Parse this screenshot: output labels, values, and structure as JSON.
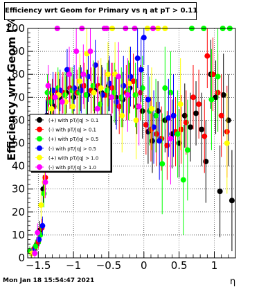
{
  "title": "Efficiency wrt Geom for Primary vs  η at pT > 0.11",
  "timestamp": "Mon Jan 18 15:54:47 2021",
  "chart_data": {
    "type": "scatter",
    "title": "Efficiency wrt Geom for Primary vs  η at pT > 0.11",
    "xlabel": "η",
    "ylabel": "Efficiency wrt Geom (%)",
    "xlim": [
      -1.65,
      1.3
    ],
    "ylim": [
      0,
      100
    ],
    "xticks": [
      -1.5,
      -1,
      -0.5,
      0,
      0.5,
      1
    ],
    "xtick_labels": [
      "−1.5",
      "−1",
      "−0.5",
      "0",
      "0.5",
      "1"
    ],
    "yticks": [
      0,
      10,
      20,
      30,
      40,
      50,
      60,
      70,
      80,
      90,
      100
    ],
    "grid": true,
    "legend_position": "left-middle",
    "series": [
      {
        "name": "(+) with pT/|q| > 0.1",
        "color": "#000000",
        "points": [
          {
            "x": -1.58,
            "y": 3,
            "e": 2
          },
          {
            "x": -1.52,
            "y": 6,
            "e": 3
          },
          {
            "x": -1.48,
            "y": 12,
            "e": 4
          },
          {
            "x": -1.43,
            "y": 30,
            "e": 6
          },
          {
            "x": -1.38,
            "y": 62,
            "e": 8
          },
          {
            "x": -1.33,
            "y": 68,
            "e": 7
          },
          {
            "x": -1.28,
            "y": 66,
            "e": 8
          },
          {
            "x": -1.2,
            "y": 70,
            "e": 8
          },
          {
            "x": -1.1,
            "y": 72,
            "e": 9
          },
          {
            "x": -1.0,
            "y": 70,
            "e": 10
          },
          {
            "x": -0.9,
            "y": 74,
            "e": 10
          },
          {
            "x": -0.8,
            "y": 71,
            "e": 11
          },
          {
            "x": -0.7,
            "y": 73,
            "e": 10
          },
          {
            "x": -0.6,
            "y": 72,
            "e": 12
          },
          {
            "x": -0.5,
            "y": 75,
            "e": 11
          },
          {
            "x": -0.4,
            "y": 70,
            "e": 12
          },
          {
            "x": -0.3,
            "y": 69,
            "e": 12
          },
          {
            "x": -0.2,
            "y": 74,
            "e": 11
          },
          {
            "x": -0.1,
            "y": 66,
            "e": 12
          },
          {
            "x": -0.02,
            "y": 64,
            "e": 12
          },
          {
            "x": 0.06,
            "y": 55,
            "e": 14
          },
          {
            "x": 0.12,
            "y": 51,
            "e": 14
          },
          {
            "x": 0.2,
            "y": 64,
            "e": 13
          },
          {
            "x": 0.3,
            "y": 60,
            "e": 14
          },
          {
            "x": 0.4,
            "y": 54,
            "e": 15
          },
          {
            "x": 0.5,
            "y": 50,
            "e": 15
          },
          {
            "x": 0.58,
            "y": 62,
            "e": 14
          },
          {
            "x": 0.66,
            "y": 57,
            "e": 15
          },
          {
            "x": 0.74,
            "y": 63,
            "e": 14
          },
          {
            "x": 0.82,
            "y": 56,
            "e": 16
          },
          {
            "x": 0.88,
            "y": 42,
            "e": 18
          },
          {
            "x": 0.95,
            "y": 80,
            "e": 15
          },
          {
            "x": 1.02,
            "y": 70,
            "e": 16
          },
          {
            "x": 1.08,
            "y": 29,
            "e": 20
          },
          {
            "x": 1.13,
            "y": 71,
            "e": 18
          },
          {
            "x": 1.2,
            "y": 60,
            "e": 20
          },
          {
            "x": 1.25,
            "y": 25,
            "e": 22
          }
        ]
      },
      {
        "name": "(-) with pT/|q| > 0.1",
        "color": "#ff0000",
        "points": [
          {
            "x": -1.56,
            "y": 4,
            "e": 2
          },
          {
            "x": -1.5,
            "y": 7,
            "e": 3
          },
          {
            "x": -1.45,
            "y": 13,
            "e": 4
          },
          {
            "x": -1.4,
            "y": 35,
            "e": 6
          },
          {
            "x": -1.35,
            "y": 69,
            "e": 8
          },
          {
            "x": -1.3,
            "y": 70,
            "e": 8
          },
          {
            "x": -1.25,
            "y": 73,
            "e": 8
          },
          {
            "x": -1.15,
            "y": 72,
            "e": 9
          },
          {
            "x": -1.05,
            "y": 74,
            "e": 9
          },
          {
            "x": -0.95,
            "y": 72,
            "e": 10
          },
          {
            "x": -0.85,
            "y": 75,
            "e": 10
          },
          {
            "x": -0.75,
            "y": 73,
            "e": 10
          },
          {
            "x": -0.65,
            "y": 75,
            "e": 11
          },
          {
            "x": -0.55,
            "y": 71,
            "e": 11
          },
          {
            "x": -0.45,
            "y": 74,
            "e": 11
          },
          {
            "x": -0.35,
            "y": 66,
            "e": 12
          },
          {
            "x": -0.25,
            "y": 72,
            "e": 12
          },
          {
            "x": -0.15,
            "y": 77,
            "e": 12
          },
          {
            "x": -0.05,
            "y": 72,
            "e": 12
          },
          {
            "x": 0.03,
            "y": 58,
            "e": 13
          },
          {
            "x": 0.1,
            "y": 56,
            "e": 14
          },
          {
            "x": 0.18,
            "y": 54,
            "e": 14
          },
          {
            "x": 0.25,
            "y": 52,
            "e": 14
          },
          {
            "x": 0.33,
            "y": 49,
            "e": 15
          },
          {
            "x": 0.45,
            "y": 55,
            "e": 15
          },
          {
            "x": 0.53,
            "y": 56,
            "e": 15
          },
          {
            "x": 0.6,
            "y": 59,
            "e": 14
          },
          {
            "x": 0.7,
            "y": 70,
            "e": 14
          },
          {
            "x": 0.78,
            "y": 67,
            "e": 15
          },
          {
            "x": 0.86,
            "y": 53,
            "e": 16
          },
          {
            "x": 0.9,
            "y": 88,
            "e": 14
          },
          {
            "x": 0.98,
            "y": 80,
            "e": 16
          },
          {
            "x": 1.05,
            "y": 72,
            "e": 17
          },
          {
            "x": 1.1,
            "y": 62,
            "e": 18
          },
          {
            "x": 1.18,
            "y": 55,
            "e": 20
          }
        ]
      },
      {
        "name": "(+) with pT/|q| > 0.5",
        "color": "#00ff00",
        "points": [
          {
            "x": -1.62,
            "y": 3,
            "e": 2
          },
          {
            "x": -1.54,
            "y": 5,
            "e": 3
          },
          {
            "x": -1.47,
            "y": 10,
            "e": 4
          },
          {
            "x": -1.42,
            "y": 28,
            "e": 6
          },
          {
            "x": -1.37,
            "y": 72,
            "e": 8
          },
          {
            "x": -1.32,
            "y": 68,
            "e": 8
          },
          {
            "x": -1.22,
            "y": 74,
            "e": 9
          },
          {
            "x": -1.12,
            "y": 71,
            "e": 10
          },
          {
            "x": -1.02,
            "y": 73,
            "e": 10
          },
          {
            "x": -0.92,
            "y": 72,
            "e": 11
          },
          {
            "x": -0.82,
            "y": 71,
            "e": 11
          },
          {
            "x": -0.72,
            "y": 75,
            "e": 11
          },
          {
            "x": -0.62,
            "y": 67,
            "e": 12
          },
          {
            "x": -0.52,
            "y": 73,
            "e": 12
          },
          {
            "x": -0.42,
            "y": 72,
            "e": 13
          },
          {
            "x": -0.32,
            "y": 70,
            "e": 13
          },
          {
            "x": -0.22,
            "y": 73,
            "e": 13
          },
          {
            "x": -0.12,
            "y": 71,
            "e": 14
          },
          {
            "x": -0.02,
            "y": 74,
            "e": 14
          },
          {
            "x": 0.08,
            "y": 64,
            "e": 15
          },
          {
            "x": 0.17,
            "y": 62,
            "e": 16
          },
          {
            "x": 0.26,
            "y": 41,
            "e": 22
          },
          {
            "x": 0.3,
            "y": 74,
            "e": 18
          },
          {
            "x": 0.38,
            "y": 72,
            "e": 18
          },
          {
            "x": 0.48,
            "y": 54,
            "e": 19
          },
          {
            "x": 0.56,
            "y": 34,
            "e": 24
          },
          {
            "x": 0.62,
            "y": 47,
            "e": 22
          },
          {
            "x": 0.68,
            "y": 100,
            "e": 0
          },
          {
            "x": 0.85,
            "y": 100,
            "e": 0
          },
          {
            "x": 0.96,
            "y": 69,
            "e": 22
          },
          {
            "x": 1.05,
            "y": 79,
            "e": 24
          },
          {
            "x": 1.12,
            "y": 100,
            "e": 0
          },
          {
            "x": 1.22,
            "y": 100,
            "e": 0
          }
        ]
      },
      {
        "name": "(-) with pT/|q| > 0.5",
        "color": "#0000ff",
        "points": [
          {
            "x": -1.57,
            "y": 3,
            "e": 2
          },
          {
            "x": -1.49,
            "y": 8,
            "e": 3
          },
          {
            "x": -1.44,
            "y": 14,
            "e": 4
          },
          {
            "x": -1.39,
            "y": 61,
            "e": 8
          },
          {
            "x": -1.29,
            "y": 73,
            "e": 8
          },
          {
            "x": -1.19,
            "y": 73,
            "e": 9
          },
          {
            "x": -1.09,
            "y": 82,
            "e": 9
          },
          {
            "x": -0.99,
            "y": 74,
            "e": 10
          },
          {
            "x": -0.89,
            "y": 73,
            "e": 10
          },
          {
            "x": -0.79,
            "y": 79,
            "e": 11
          },
          {
            "x": -0.69,
            "y": 84,
            "e": 11
          },
          {
            "x": -0.59,
            "y": 71,
            "e": 12
          },
          {
            "x": -0.49,
            "y": 76,
            "e": 12
          },
          {
            "x": -0.39,
            "y": 68,
            "e": 12
          },
          {
            "x": -0.29,
            "y": 75,
            "e": 13
          },
          {
            "x": -0.19,
            "y": 79,
            "e": 13
          },
          {
            "x": -0.09,
            "y": 87,
            "e": 13
          },
          {
            "x": -0.04,
            "y": 82,
            "e": 14
          },
          {
            "x": 0.0,
            "y": 96,
            "e": 12
          },
          {
            "x": 0.06,
            "y": 69,
            "e": 15
          },
          {
            "x": 0.14,
            "y": 57,
            "e": 16
          },
          {
            "x": 0.22,
            "y": 51,
            "e": 17
          },
          {
            "x": 0.35,
            "y": 61,
            "e": 17
          },
          {
            "x": 0.42,
            "y": 62,
            "e": 18
          }
        ]
      },
      {
        "name": "(+) with pT/|q| > 1.0",
        "color": "#ffff00",
        "points": [
          {
            "x": -1.59,
            "y": 2,
            "e": 2
          },
          {
            "x": -1.46,
            "y": 23,
            "e": 6
          },
          {
            "x": -1.41,
            "y": 33,
            "e": 7
          },
          {
            "x": -1.31,
            "y": 65,
            "e": 9
          },
          {
            "x": -1.21,
            "y": 71,
            "e": 10
          },
          {
            "x": -1.11,
            "y": 68,
            "e": 11
          },
          {
            "x": -1.01,
            "y": 66,
            "e": 12
          },
          {
            "x": -0.91,
            "y": 77,
            "e": 12
          },
          {
            "x": -0.81,
            "y": 89,
            "e": 12
          },
          {
            "x": -0.71,
            "y": 72,
            "e": 13
          },
          {
            "x": -0.61,
            "y": 74,
            "e": 13
          },
          {
            "x": -0.51,
            "y": 80,
            "e": 14
          },
          {
            "x": -0.45,
            "y": 100,
            "e": 0
          },
          {
            "x": -0.41,
            "y": 80,
            "e": 14
          },
          {
            "x": -0.31,
            "y": 62,
            "e": 16
          },
          {
            "x": -0.21,
            "y": 76,
            "e": 16
          },
          {
            "x": -0.11,
            "y": 60,
            "e": 17
          },
          {
            "x": 0.05,
            "y": 100,
            "e": 0
          },
          {
            "x": 0.11,
            "y": 65,
            "e": 18
          },
          {
            "x": 0.2,
            "y": 100,
            "e": 0
          },
          {
            "x": 0.3,
            "y": 100,
            "e": 0
          },
          {
            "x": 0.52,
            "y": 67,
            "e": 20
          },
          {
            "x": 1.18,
            "y": 50,
            "e": 22
          }
        ]
      },
      {
        "name": "(-) with pT/|q| > 1.0",
        "color": "#ff00ff",
        "points": [
          {
            "x": -1.55,
            "y": 2,
            "e": 2
          },
          {
            "x": -1.51,
            "y": 11,
            "e": 4
          },
          {
            "x": -1.4,
            "y": 33,
            "e": 7
          },
          {
            "x": -1.36,
            "y": 75,
            "e": 9
          },
          {
            "x": -1.26,
            "y": 70,
            "e": 10
          },
          {
            "x": -1.16,
            "y": 68,
            "e": 11
          },
          {
            "x": -1.06,
            "y": 80,
            "e": 12
          },
          {
            "x": -0.96,
            "y": 90,
            "e": 12
          },
          {
            "x": -0.86,
            "y": 80,
            "e": 13
          },
          {
            "x": -0.76,
            "y": 90,
            "e": 13
          },
          {
            "x": -0.66,
            "y": 65,
            "e": 14
          },
          {
            "x": -0.56,
            "y": 100,
            "e": 0
          },
          {
            "x": -0.53,
            "y": 100,
            "e": 0
          },
          {
            "x": -0.46,
            "y": 70,
            "e": 15
          },
          {
            "x": -0.36,
            "y": 79,
            "e": 15
          },
          {
            "x": -0.26,
            "y": 100,
            "e": 0
          },
          {
            "x": -0.23,
            "y": 71,
            "e": 16
          },
          {
            "x": -0.13,
            "y": 100,
            "e": 0
          },
          {
            "x": -0.07,
            "y": 66,
            "e": 17
          },
          {
            "x": 0.13,
            "y": 100,
            "e": 0
          },
          {
            "x": 0.38,
            "y": 52,
            "e": 20
          },
          {
            "x": -0.88,
            "y": 100,
            "e": 0
          },
          {
            "x": -1.23,
            "y": 100,
            "e": 0
          }
        ]
      }
    ]
  }
}
